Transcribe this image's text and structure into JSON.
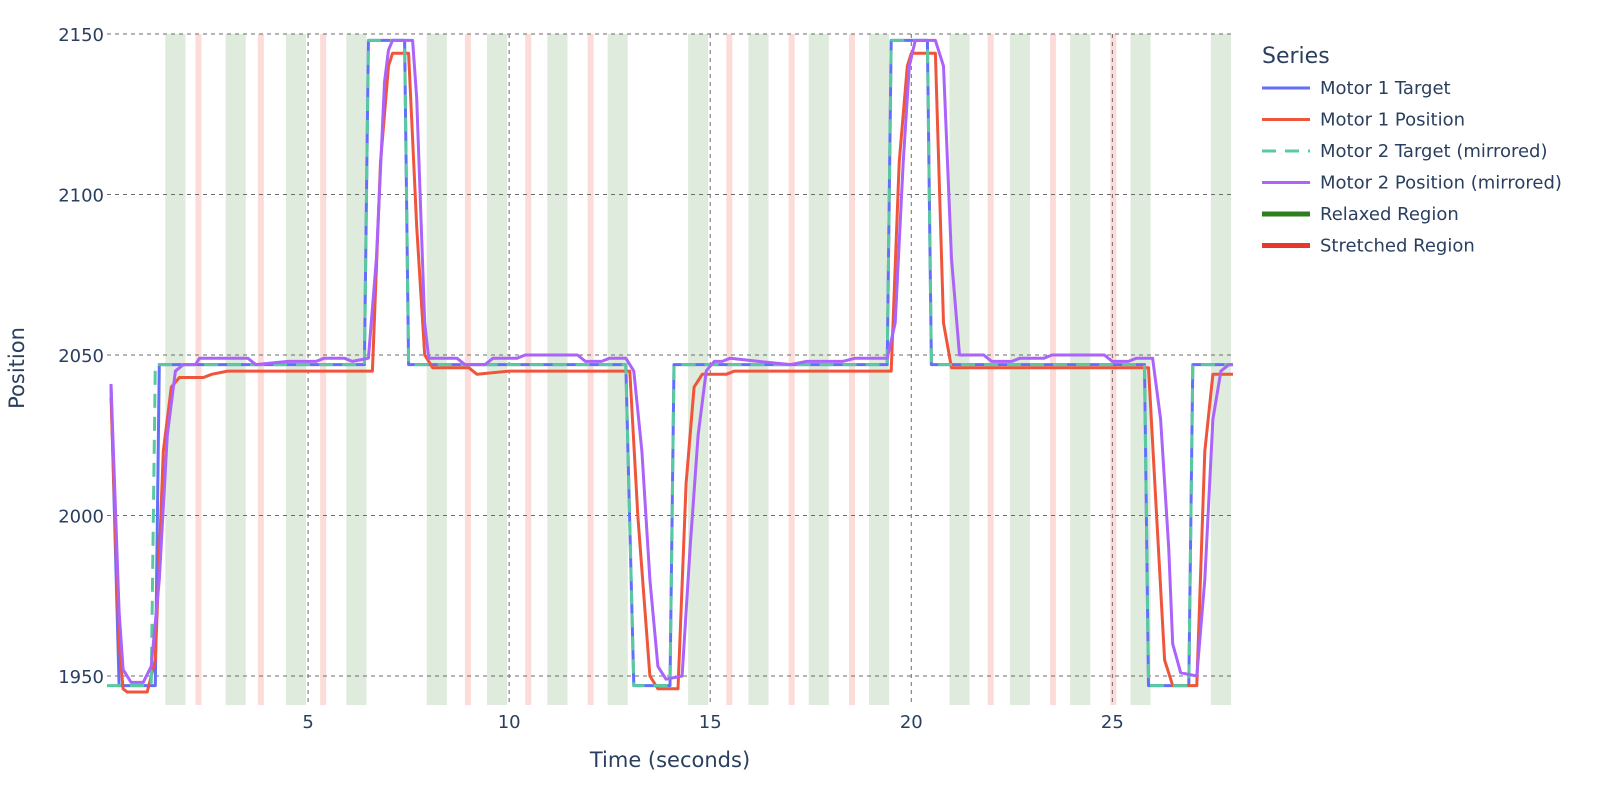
{
  "chart_data": {
    "type": "line",
    "xlabel": "Time (seconds)",
    "ylabel": "Position",
    "xlim": [
      0,
      28
    ],
    "ylim": [
      1940,
      2150
    ],
    "x_ticks": [
      5,
      10,
      15,
      20,
      25
    ],
    "y_ticks": [
      1950,
      2000,
      2050,
      2100,
      2150
    ],
    "legend_title": "Series",
    "legend_position": "right",
    "grid": "dashed",
    "series": [
      {
        "name": "Motor 1 Target",
        "color": "#636efa",
        "dash": "solid",
        "points": [
          [
            0.1,
            2040
          ],
          [
            0.3,
            1947
          ],
          [
            1.0,
            1947
          ],
          [
            1.2,
            1947
          ],
          [
            1.3,
            2047
          ],
          [
            6.4,
            2047
          ],
          [
            6.5,
            2148
          ],
          [
            7.4,
            2148
          ],
          [
            7.5,
            2047
          ],
          [
            12.9,
            2047
          ],
          [
            13.1,
            1947
          ],
          [
            14.0,
            1947
          ],
          [
            14.1,
            2047
          ],
          [
            19.4,
            2047
          ],
          [
            19.5,
            2148
          ],
          [
            20.4,
            2148
          ],
          [
            20.5,
            2047
          ],
          [
            25.8,
            2047
          ],
          [
            25.9,
            1947
          ],
          [
            26.9,
            1947
          ],
          [
            27.0,
            2047
          ],
          [
            28.0,
            2047
          ]
        ]
      },
      {
        "name": "Motor 1 Position",
        "color": "#ef553b",
        "dash": "solid",
        "points": [
          [
            0.1,
            2037
          ],
          [
            0.3,
            1960
          ],
          [
            0.4,
            1946
          ],
          [
            0.5,
            1945
          ],
          [
            1.0,
            1945
          ],
          [
            1.2,
            1955
          ],
          [
            1.4,
            2020
          ],
          [
            1.6,
            2040
          ],
          [
            1.8,
            2043
          ],
          [
            2.4,
            2043
          ],
          [
            2.6,
            2044
          ],
          [
            3.0,
            2045
          ],
          [
            6.6,
            2045
          ],
          [
            6.8,
            2110
          ],
          [
            7.0,
            2140
          ],
          [
            7.1,
            2144
          ],
          [
            7.5,
            2144
          ],
          [
            7.7,
            2090
          ],
          [
            7.9,
            2050
          ],
          [
            8.1,
            2046
          ],
          [
            9.0,
            2046
          ],
          [
            9.2,
            2044
          ],
          [
            10.0,
            2045
          ],
          [
            13.0,
            2045
          ],
          [
            13.2,
            2000
          ],
          [
            13.5,
            1950
          ],
          [
            13.7,
            1946
          ],
          [
            14.2,
            1946
          ],
          [
            14.4,
            2010
          ],
          [
            14.6,
            2040
          ],
          [
            14.8,
            2044
          ],
          [
            15.4,
            2044
          ],
          [
            15.6,
            2045
          ],
          [
            19.5,
            2045
          ],
          [
            19.7,
            2110
          ],
          [
            19.9,
            2140
          ],
          [
            20.0,
            2144
          ],
          [
            20.6,
            2144
          ],
          [
            20.8,
            2060
          ],
          [
            21.0,
            2046
          ],
          [
            25.9,
            2046
          ],
          [
            26.1,
            2000
          ],
          [
            26.3,
            1955
          ],
          [
            26.5,
            1947
          ],
          [
            27.1,
            1947
          ],
          [
            27.3,
            2020
          ],
          [
            27.5,
            2044
          ],
          [
            28.0,
            2044
          ]
        ]
      },
      {
        "name": "Motor 2 Target (mirrored)",
        "color": "#58c9a0",
        "dash": "dash",
        "points": [
          [
            0.0,
            1947
          ],
          [
            1.1,
            1947
          ],
          [
            1.2,
            2047
          ],
          [
            6.4,
            2047
          ],
          [
            6.5,
            2148
          ],
          [
            7.4,
            2148
          ],
          [
            7.5,
            2047
          ],
          [
            12.9,
            2047
          ],
          [
            13.1,
            1947
          ],
          [
            14.0,
            1947
          ],
          [
            14.1,
            2047
          ],
          [
            19.4,
            2047
          ],
          [
            19.5,
            2148
          ],
          [
            20.4,
            2148
          ],
          [
            20.5,
            2047
          ],
          [
            25.8,
            2047
          ],
          [
            25.9,
            1947
          ],
          [
            26.9,
            1947
          ],
          [
            27.0,
            2047
          ],
          [
            28.0,
            2047
          ]
        ]
      },
      {
        "name": "Motor 2 Position (mirrored)",
        "color": "#ab63fa",
        "dash": "solid",
        "points": [
          [
            0.1,
            2041
          ],
          [
            0.3,
            1970
          ],
          [
            0.4,
            1952
          ],
          [
            0.6,
            1948
          ],
          [
            0.9,
            1948
          ],
          [
            1.1,
            1953
          ],
          [
            1.3,
            1980
          ],
          [
            1.5,
            2025
          ],
          [
            1.7,
            2045
          ],
          [
            1.9,
            2047
          ],
          [
            2.2,
            2047
          ],
          [
            2.3,
            2049
          ],
          [
            3.5,
            2049
          ],
          [
            3.7,
            2047
          ],
          [
            4.5,
            2048
          ],
          [
            5.2,
            2048
          ],
          [
            5.4,
            2049
          ],
          [
            5.9,
            2049
          ],
          [
            6.1,
            2048
          ],
          [
            6.5,
            2049
          ],
          [
            6.7,
            2080
          ],
          [
            6.9,
            2135
          ],
          [
            7.0,
            2145
          ],
          [
            7.1,
            2148
          ],
          [
            7.6,
            2148
          ],
          [
            7.7,
            2130
          ],
          [
            7.9,
            2060
          ],
          [
            8.0,
            2049
          ],
          [
            8.7,
            2049
          ],
          [
            8.9,
            2047
          ],
          [
            9.4,
            2047
          ],
          [
            9.6,
            2049
          ],
          [
            10.2,
            2049
          ],
          [
            10.4,
            2050
          ],
          [
            11.7,
            2050
          ],
          [
            11.9,
            2048
          ],
          [
            12.3,
            2048
          ],
          [
            12.5,
            2049
          ],
          [
            12.9,
            2049
          ],
          [
            13.1,
            2045
          ],
          [
            13.3,
            2020
          ],
          [
            13.5,
            1980
          ],
          [
            13.7,
            1953
          ],
          [
            13.9,
            1949
          ],
          [
            14.3,
            1950
          ],
          [
            14.5,
            1990
          ],
          [
            14.7,
            2025
          ],
          [
            14.9,
            2045
          ],
          [
            15.1,
            2048
          ],
          [
            15.3,
            2048
          ],
          [
            15.5,
            2049
          ],
          [
            16.2,
            2048
          ],
          [
            17.0,
            2047
          ],
          [
            17.4,
            2048
          ],
          [
            18.3,
            2048
          ],
          [
            18.6,
            2049
          ],
          [
            19.4,
            2049
          ],
          [
            19.6,
            2060
          ],
          [
            19.8,
            2110
          ],
          [
            19.95,
            2140
          ],
          [
            20.1,
            2148
          ],
          [
            20.6,
            2148
          ],
          [
            20.8,
            2140
          ],
          [
            21.0,
            2080
          ],
          [
            21.2,
            2050
          ],
          [
            21.8,
            2050
          ],
          [
            22.0,
            2048
          ],
          [
            22.5,
            2048
          ],
          [
            22.7,
            2049
          ],
          [
            23.3,
            2049
          ],
          [
            23.5,
            2050
          ],
          [
            24.8,
            2050
          ],
          [
            25.0,
            2048
          ],
          [
            25.4,
            2048
          ],
          [
            25.6,
            2049
          ],
          [
            26.0,
            2049
          ],
          [
            26.2,
            2030
          ],
          [
            26.4,
            1990
          ],
          [
            26.5,
            1960
          ],
          [
            26.7,
            1951
          ],
          [
            27.1,
            1950
          ],
          [
            27.3,
            1980
          ],
          [
            27.5,
            2030
          ],
          [
            27.7,
            2045
          ],
          [
            27.9,
            2047
          ],
          [
            28.0,
            2047
          ]
        ]
      }
    ],
    "region_series": [
      {
        "name": "Relaxed Region",
        "color": "#2e7d1f",
        "fill": "#dfebdc",
        "spans": [
          [
            1.45,
            1.95
          ],
          [
            2.95,
            3.45
          ],
          [
            4.45,
            4.95
          ],
          [
            5.95,
            6.45
          ],
          [
            7.95,
            8.45
          ],
          [
            9.45,
            9.95
          ],
          [
            10.95,
            11.45
          ],
          [
            12.45,
            12.95
          ],
          [
            14.45,
            14.95
          ],
          [
            15.95,
            16.45
          ],
          [
            17.45,
            17.95
          ],
          [
            18.95,
            19.45
          ],
          [
            20.95,
            21.45
          ],
          [
            22.45,
            22.95
          ],
          [
            23.95,
            24.45
          ],
          [
            25.45,
            25.95
          ],
          [
            27.45,
            27.95
          ]
        ]
      },
      {
        "name": "Stretched Region",
        "color": "#e5392e",
        "fill": "#fcdcd8",
        "spans": [
          [
            2.2,
            2.35
          ],
          [
            3.75,
            3.9
          ],
          [
            5.3,
            5.45
          ],
          [
            8.9,
            9.05
          ],
          [
            10.4,
            10.55
          ],
          [
            11.95,
            12.1
          ],
          [
            15.4,
            15.55
          ],
          [
            16.95,
            17.1
          ],
          [
            18.45,
            18.6
          ],
          [
            21.9,
            22.05
          ],
          [
            23.45,
            23.6
          ],
          [
            24.95,
            25.1
          ]
        ]
      }
    ]
  }
}
